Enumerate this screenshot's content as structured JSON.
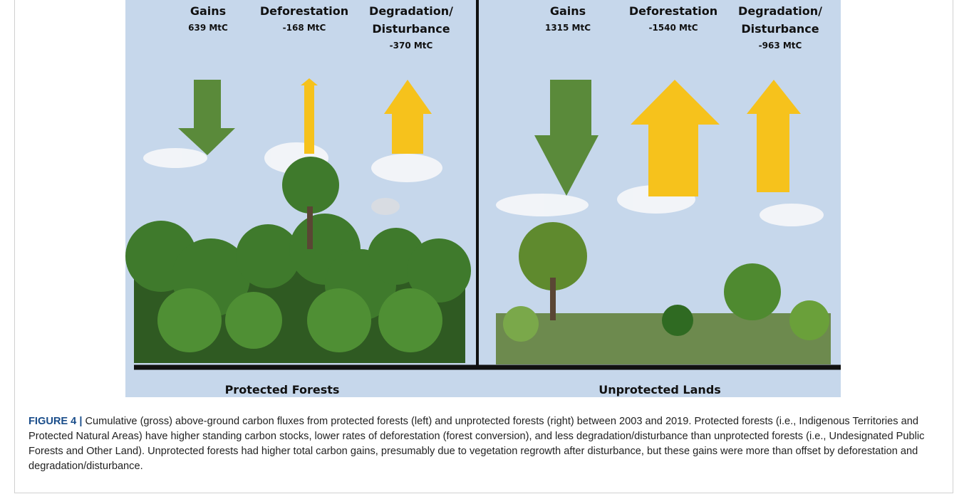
{
  "figure": {
    "panels": [
      {
        "title": "Protected Forests",
        "fluxes": [
          {
            "label": "Gains",
            "value": "639 MtC"
          },
          {
            "label": "Deforestation",
            "value": "-168 MtC"
          },
          {
            "label": "Degradation/ Disturbance",
            "value": "-370 MtC"
          }
        ]
      },
      {
        "title": "Unprotected Lands",
        "fluxes": [
          {
            "label": "Gains",
            "value": "1315 MtC"
          },
          {
            "label": "Deforestation",
            "value": "-1540 MtC"
          },
          {
            "label": "Degradation/ Disturbance",
            "value": "-963 MtC"
          }
        ]
      }
    ],
    "caption": {
      "label": "FIGURE 4 |",
      "text": "Cumulative (gross) above-ground carbon fluxes from protected forests (left) and unprotected forests (right) between 2003 and 2019. Protected forests (i.e., Indigenous Territories and Protected Natural Areas) have higher standing carbon stocks, lower rates of deforestation (forest conversion), and less degradation/disturbance than unprotected forests (i.e., Undesignated Public Forests and Other Land). Unprotected forests had higher total carbon gains, presumably due to vegetation regrowth after disturbance, but these gains were more than offset by deforestation and degradation/disturbance."
    }
  }
}
